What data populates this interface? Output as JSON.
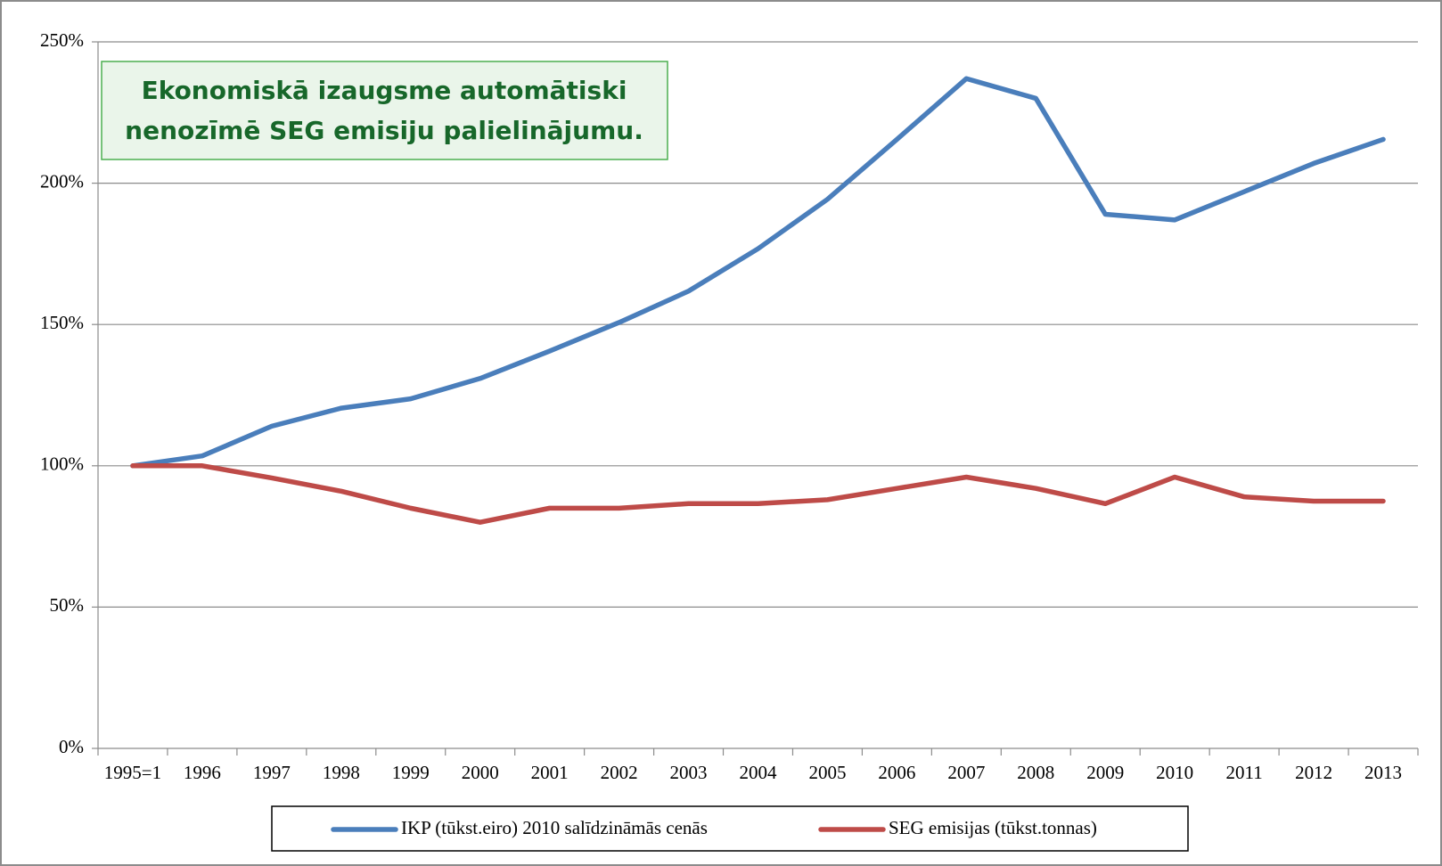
{
  "chart_data": {
    "type": "line",
    "annotation": [
      "Ekonomiskā izaugsme automātiski",
      "nenozīmē SEG emisiju palielinājumu."
    ],
    "categories": [
      "1995=1",
      "1996",
      "1997",
      "1998",
      "1999",
      "2000",
      "2001",
      "2002",
      "2003",
      "2004",
      "2005",
      "2006",
      "2007",
      "2008",
      "2009",
      "2010",
      "2011",
      "2012",
      "2013"
    ],
    "series": [
      {
        "name": "IKP (tūkst.eiro) 2010 salīdzināmās cenās",
        "color": "#4a7ebb",
        "values": [
          100,
          103.5,
          114,
          120.4,
          123.7,
          130.9,
          140.6,
          150.7,
          161.8,
          176.8,
          194.3,
          215.5,
          237,
          230,
          189,
          187,
          197,
          207,
          215.5
        ]
      },
      {
        "name": "SEG emisijas (tūkst.tonnas)",
        "color": "#be4b48",
        "values": [
          100,
          100,
          95.7,
          91,
          85,
          80,
          85,
          85,
          86.6,
          86.6,
          88,
          92,
          96,
          92,
          86.6,
          96,
          89,
          87.5,
          87.5
        ]
      }
    ],
    "ylim": [
      0,
      250
    ],
    "yticks": [
      {
        "value": 0,
        "label": "0%"
      },
      {
        "value": 50,
        "label": "50%"
      },
      {
        "value": 100,
        "label": "100%"
      },
      {
        "value": 150,
        "label": "150%"
      },
      {
        "value": 200,
        "label": "200%"
      },
      {
        "value": 250,
        "label": "250%"
      }
    ],
    "grid": true,
    "legend": "bottom"
  }
}
